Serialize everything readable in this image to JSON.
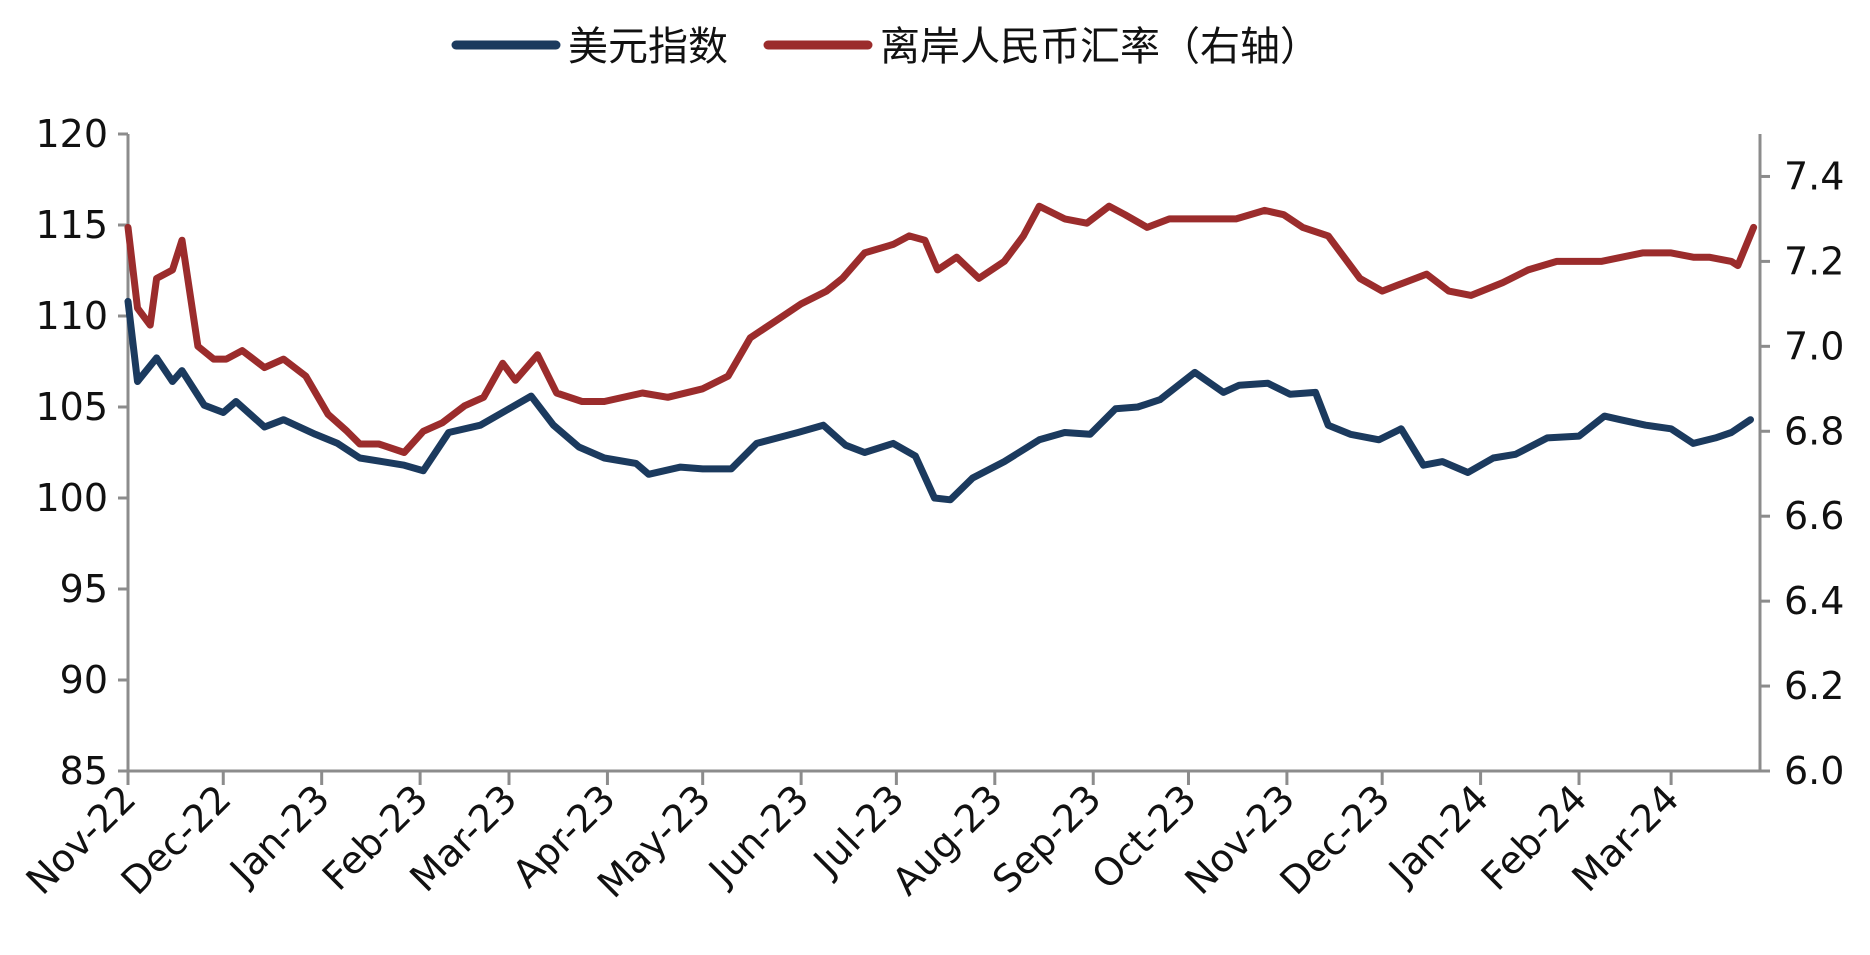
{
  "chart_data": {
    "type": "line",
    "title": "",
    "legend_position": "top-center",
    "grid": false,
    "x_ticks": [
      "Nov-22",
      "Dec-22",
      "Jan-23",
      "Feb-23",
      "Mar-23",
      "Apr-23",
      "May-23",
      "Jun-23",
      "Jul-23",
      "Aug-23",
      "Sep-23",
      "Oct-23",
      "Nov-23",
      "Dec-23",
      "Jan-24",
      "Feb-24",
      "Mar-24"
    ],
    "y_left": {
      "lim": [
        85,
        120
      ],
      "ticks": [
        "85",
        "90",
        "95",
        "100",
        "105",
        "110",
        "115",
        "120"
      ]
    },
    "y_right": {
      "lim": [
        6.0,
        7.5
      ],
      "ticks": [
        "6.0",
        "6.2",
        "6.4",
        "6.6",
        "6.8",
        "7.0",
        "7.2",
        "7.4"
      ]
    },
    "series": [
      {
        "name": "美元指数",
        "axis": "left",
        "color": "#1b3a5e",
        "x": [
          "2022-11-01",
          "2022-11-04",
          "2022-11-10",
          "2022-11-15",
          "2022-11-18",
          "2022-11-25",
          "2022-12-01",
          "2022-12-05",
          "2022-12-14",
          "2022-12-20",
          "2022-12-30",
          "2023-01-06",
          "2023-01-13",
          "2023-01-20",
          "2023-01-27",
          "2023-02-02",
          "2023-02-10",
          "2023-02-20",
          "2023-02-28",
          "2023-03-08",
          "2023-03-15",
          "2023-03-23",
          "2023-03-31",
          "2023-04-10",
          "2023-04-14",
          "2023-04-24",
          "2023-05-01",
          "2023-05-10",
          "2023-05-18",
          "2023-05-31",
          "2023-06-08",
          "2023-06-15",
          "2023-06-21",
          "2023-06-30",
          "2023-07-07",
          "2023-07-13",
          "2023-07-18",
          "2023-07-25",
          "2023-08-04",
          "2023-08-15",
          "2023-08-23",
          "2023-08-31",
          "2023-09-08",
          "2023-09-15",
          "2023-09-22",
          "2023-10-03",
          "2023-10-12",
          "2023-10-17",
          "2023-10-26",
          "2023-11-02",
          "2023-11-10",
          "2023-11-14",
          "2023-11-21",
          "2023-11-30",
          "2023-12-07",
          "2023-12-14",
          "2023-12-20",
          "2023-12-28",
          "2024-01-05",
          "2024-01-12",
          "2024-01-22",
          "2024-02-01",
          "2024-02-09",
          "2024-02-14",
          "2024-02-22",
          "2024-03-01",
          "2024-03-08",
          "2024-03-15",
          "2024-03-20",
          "2024-03-26"
        ],
        "values": [
          110.8,
          106.4,
          107.7,
          106.4,
          107.0,
          105.1,
          104.7,
          105.3,
          103.9,
          104.3,
          103.5,
          103.0,
          102.2,
          102.0,
          101.8,
          101.5,
          103.6,
          104.0,
          104.8,
          105.6,
          104.0,
          102.8,
          102.2,
          101.9,
          101.3,
          101.7,
          101.6,
          101.6,
          103.0,
          103.6,
          104.0,
          102.9,
          102.5,
          103.0,
          102.3,
          100.0,
          99.9,
          101.1,
          102.0,
          103.2,
          103.6,
          103.5,
          104.9,
          105.0,
          105.4,
          106.9,
          105.8,
          106.2,
          106.3,
          105.7,
          105.8,
          104.0,
          103.5,
          103.2,
          103.8,
          101.8,
          102.0,
          101.4,
          102.2,
          102.4,
          103.3,
          103.4,
          104.5,
          104.3,
          104.0,
          103.8,
          103.0,
          103.3,
          103.6,
          104.3
        ]
      },
      {
        "name": "离岸人民币汇率（右轴）",
        "axis": "right",
        "color": "#9b2c2c",
        "x": [
          "2022-11-01",
          "2022-11-04",
          "2022-11-08",
          "2022-11-10",
          "2022-11-15",
          "2022-11-18",
          "2022-11-23",
          "2022-11-28",
          "2022-12-02",
          "2022-12-07",
          "2022-12-14",
          "2022-12-20",
          "2022-12-27",
          "2023-01-03",
          "2023-01-09",
          "2023-01-13",
          "2023-01-19",
          "2023-01-27",
          "2023-02-02",
          "2023-02-08",
          "2023-02-15",
          "2023-02-21",
          "2023-02-27",
          "2023-03-03",
          "2023-03-10",
          "2023-03-16",
          "2023-03-24",
          "2023-03-31",
          "2023-04-12",
          "2023-04-20",
          "2023-05-01",
          "2023-05-09",
          "2023-05-16",
          "2023-05-24",
          "2023-06-01",
          "2023-06-09",
          "2023-06-14",
          "2023-06-21",
          "2023-06-30",
          "2023-07-05",
          "2023-07-10",
          "2023-07-14",
          "2023-07-20",
          "2023-07-27",
          "2023-08-04",
          "2023-08-10",
          "2023-08-15",
          "2023-08-23",
          "2023-08-30",
          "2023-09-06",
          "2023-09-11",
          "2023-09-18",
          "2023-09-25",
          "2023-10-06",
          "2023-10-16",
          "2023-10-25",
          "2023-10-31",
          "2023-11-06",
          "2023-11-14",
          "2023-11-24",
          "2023-12-01",
          "2023-12-08",
          "2023-12-15",
          "2023-12-22",
          "2023-12-29",
          "2024-01-08",
          "2024-01-16",
          "2024-01-25",
          "2024-02-01",
          "2024-02-08",
          "2024-02-21",
          "2024-03-01",
          "2024-03-08",
          "2024-03-13",
          "2024-03-20",
          "2024-03-22",
          "2024-03-27"
        ],
        "values": [
          7.28,
          7.09,
          7.05,
          7.16,
          7.18,
          7.25,
          7.0,
          6.97,
          6.97,
          6.99,
          6.95,
          6.97,
          6.93,
          6.84,
          6.8,
          6.77,
          6.77,
          6.75,
          6.8,
          6.82,
          6.86,
          6.88,
          6.96,
          6.92,
          6.98,
          6.89,
          6.87,
          6.87,
          6.89,
          6.88,
          6.9,
          6.93,
          7.02,
          7.06,
          7.1,
          7.13,
          7.16,
          7.22,
          7.24,
          7.26,
          7.25,
          7.18,
          7.21,
          7.16,
          7.2,
          7.26,
          7.33,
          7.3,
          7.29,
          7.33,
          7.31,
          7.28,
          7.3,
          7.3,
          7.3,
          7.32,
          7.31,
          7.28,
          7.26,
          7.16,
          7.13,
          7.15,
          7.17,
          7.13,
          7.12,
          7.15,
          7.18,
          7.2,
          7.2,
          7.2,
          7.22,
          7.22,
          7.21,
          7.21,
          7.2,
          7.19,
          7.28
        ]
      }
    ]
  }
}
